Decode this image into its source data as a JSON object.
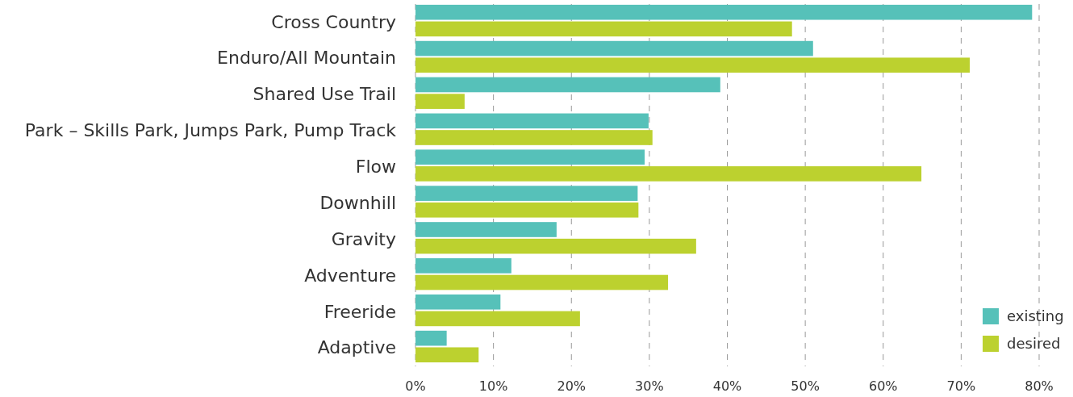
{
  "chart_data": {
    "type": "bar",
    "orientation": "horizontal",
    "categories": [
      "Cross Country",
      "Enduro/All Mountain",
      "Shared Use Trail",
      "Park – Skills Park, Jumps Park, Pump Track",
      "Flow",
      "Downhill",
      "Gravity",
      "Adventure",
      "Freeride",
      "Adaptive"
    ],
    "series": [
      {
        "name": "existing",
        "color": "#56c1b9",
        "values": [
          79.1,
          51.0,
          39.1,
          29.9,
          29.4,
          28.5,
          18.1,
          12.3,
          10.9,
          4.0
        ]
      },
      {
        "name": "desired",
        "color": "#bcd12f",
        "values": [
          48.3,
          71.1,
          6.3,
          30.4,
          64.9,
          28.6,
          36.0,
          32.4,
          21.1,
          8.1
        ]
      }
    ],
    "xlim": [
      0,
      80
    ],
    "xticks": [
      {
        "value": 0,
        "label": "0%"
      },
      {
        "value": 10,
        "label": "10%"
      },
      {
        "value": 20,
        "label": "20%"
      },
      {
        "value": 30,
        "label": "30%"
      },
      {
        "value": 40,
        "label": "40%"
      },
      {
        "value": 50,
        "label": "50%"
      },
      {
        "value": 60,
        "label": "60%"
      },
      {
        "value": 70,
        "label": "70%"
      },
      {
        "value": 80,
        "label": "80%"
      }
    ],
    "grid": "x",
    "legend": "bottom right"
  }
}
